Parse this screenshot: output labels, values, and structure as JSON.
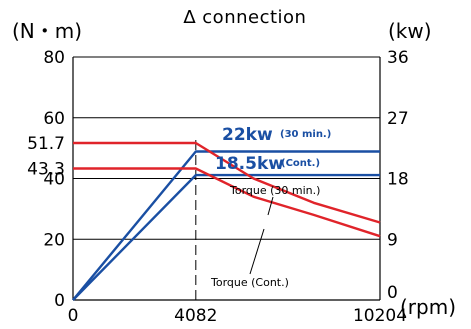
{
  "chart_data": {
    "type": "line",
    "title": "∆ connection",
    "ylabel_left": "(N・m)",
    "ylabel_right": "(kw)",
    "xlabel": "(rpm)",
    "x_ticks": [
      0,
      4082,
      10204
    ],
    "y_left_ticks": [
      0,
      20,
      40,
      60,
      80
    ],
    "y_right_ticks": [
      0,
      9,
      18,
      27,
      36
    ],
    "y_left_extra_labels": [
      51.7,
      43.3
    ],
    "xlim": [
      0,
      10204
    ],
    "ylim_left": [
      0,
      80
    ],
    "ylim_right": [
      0,
      36
    ],
    "grid": true,
    "series": [
      {
        "axis": "right",
        "color": "#1a4fa3",
        "points": [
          [
            0,
            0
          ],
          [
            4082,
            22
          ],
          [
            10204,
            22
          ]
        ]
      },
      {
        "axis": "right",
        "color": "#1a4fa3",
        "points": [
          [
            0,
            0
          ],
          [
            4082,
            18.5
          ],
          [
            10204,
            18.5
          ]
        ]
      },
      {
        "axis": "left",
        "color": "#e0242a",
        "points": [
          [
            0,
            51.7
          ],
          [
            4082,
            51.7
          ],
          [
            6000,
            40
          ],
          [
            8000,
            32
          ],
          [
            10204,
            25.5
          ]
        ]
      },
      {
        "axis": "left",
        "color": "#e0242a",
        "points": [
          [
            0,
            43.3
          ],
          [
            4082,
            43.3
          ],
          [
            6000,
            34
          ],
          [
            8000,
            28
          ],
          [
            10204,
            21
          ]
        ]
      }
    ],
    "annotations": {
      "power_30min": "22kw",
      "power_30min_note": "(30 min.)",
      "power_cont": "18.5kw",
      "power_cont_note": "(Cont.)",
      "torque_30min": "Torque (30 min.)",
      "torque_cont": "Torque (Cont.)"
    }
  }
}
